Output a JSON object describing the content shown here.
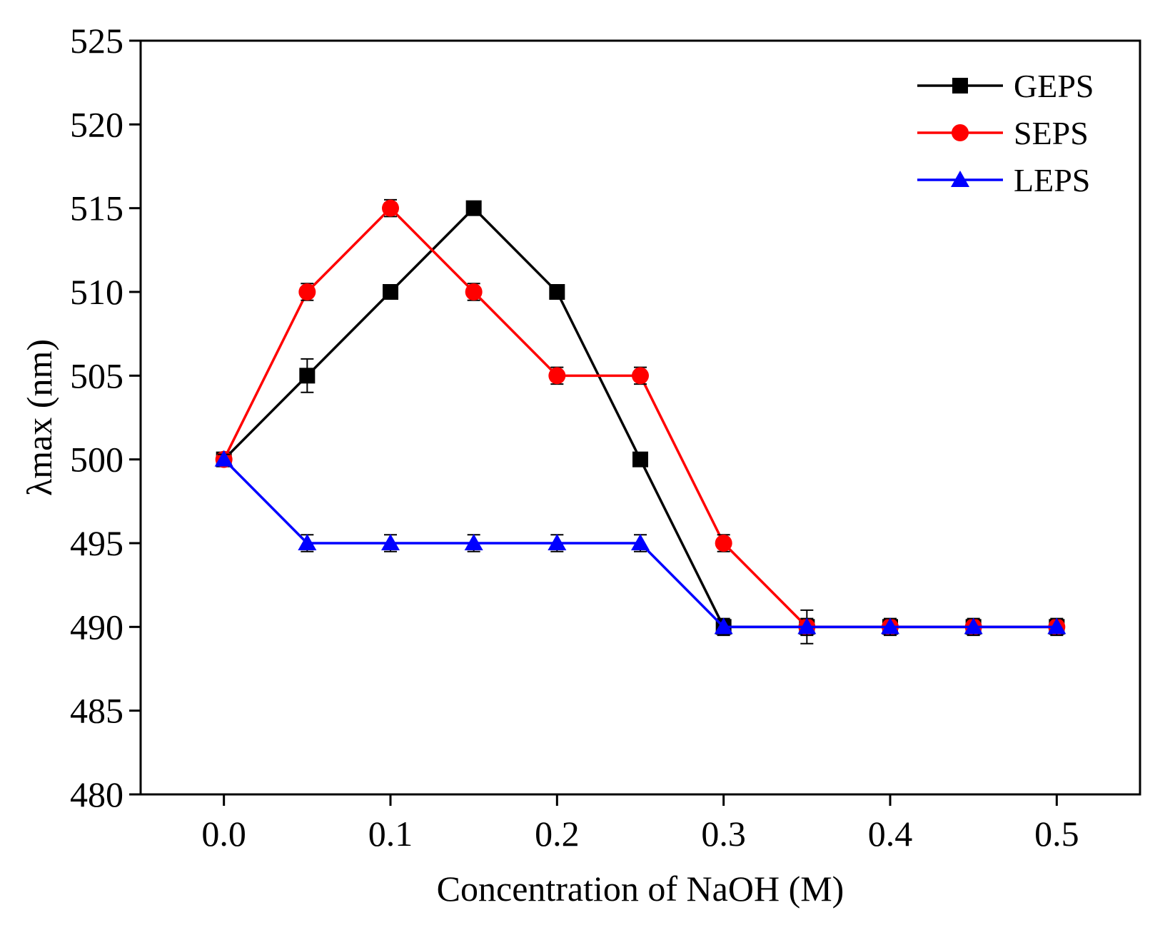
{
  "chart_data": {
    "type": "line",
    "title": "",
    "xlabel": "Concentration of NaOH (M)",
    "ylabel": "λmax (nm)",
    "xlim": [
      -0.05,
      0.55
    ],
    "ylim": [
      480,
      525
    ],
    "x_ticks": [
      0.0,
      0.1,
      0.2,
      0.3,
      0.4,
      0.5
    ],
    "x_tick_labels": [
      "0.0",
      "0.1",
      "0.2",
      "0.3",
      "0.4",
      "0.5"
    ],
    "y_ticks": [
      480,
      485,
      490,
      495,
      500,
      505,
      510,
      515,
      520,
      525
    ],
    "y_tick_labels": [
      "480",
      "485",
      "490",
      "495",
      "500",
      "505",
      "510",
      "515",
      "520",
      "525"
    ],
    "grid": false,
    "legend_position": "top-right",
    "x": [
      0.0,
      0.05,
      0.1,
      0.15,
      0.2,
      0.25,
      0.3,
      0.35,
      0.4,
      0.45,
      0.5
    ],
    "series": [
      {
        "name": "GEPS",
        "color": "#000000",
        "marker": "square",
        "values": [
          500,
          505,
          510,
          515,
          510,
          500,
          490,
          490,
          490,
          490,
          490
        ],
        "errors": [
          0.3,
          1.0,
          0.3,
          0.3,
          0.3,
          0.3,
          0.3,
          0.3,
          0.3,
          0.3,
          0.3
        ]
      },
      {
        "name": "SEPS",
        "color": "#ff0000",
        "marker": "circle",
        "values": [
          500,
          510,
          515,
          510,
          505,
          505,
          495,
          490,
          490,
          490,
          490
        ],
        "errors": [
          0.3,
          0.5,
          0.5,
          0.5,
          0.5,
          0.5,
          0.5,
          1.0,
          0.3,
          0.3,
          0.3
        ]
      },
      {
        "name": "LEPS",
        "color": "#0000ff",
        "marker": "triangle",
        "values": [
          500,
          495,
          495,
          495,
          495,
          495,
          490,
          490,
          490,
          490,
          490
        ],
        "errors": [
          0.3,
          0.5,
          0.5,
          0.5,
          0.5,
          0.5,
          0.5,
          0.5,
          0.5,
          0.5,
          0.5
        ]
      }
    ]
  }
}
